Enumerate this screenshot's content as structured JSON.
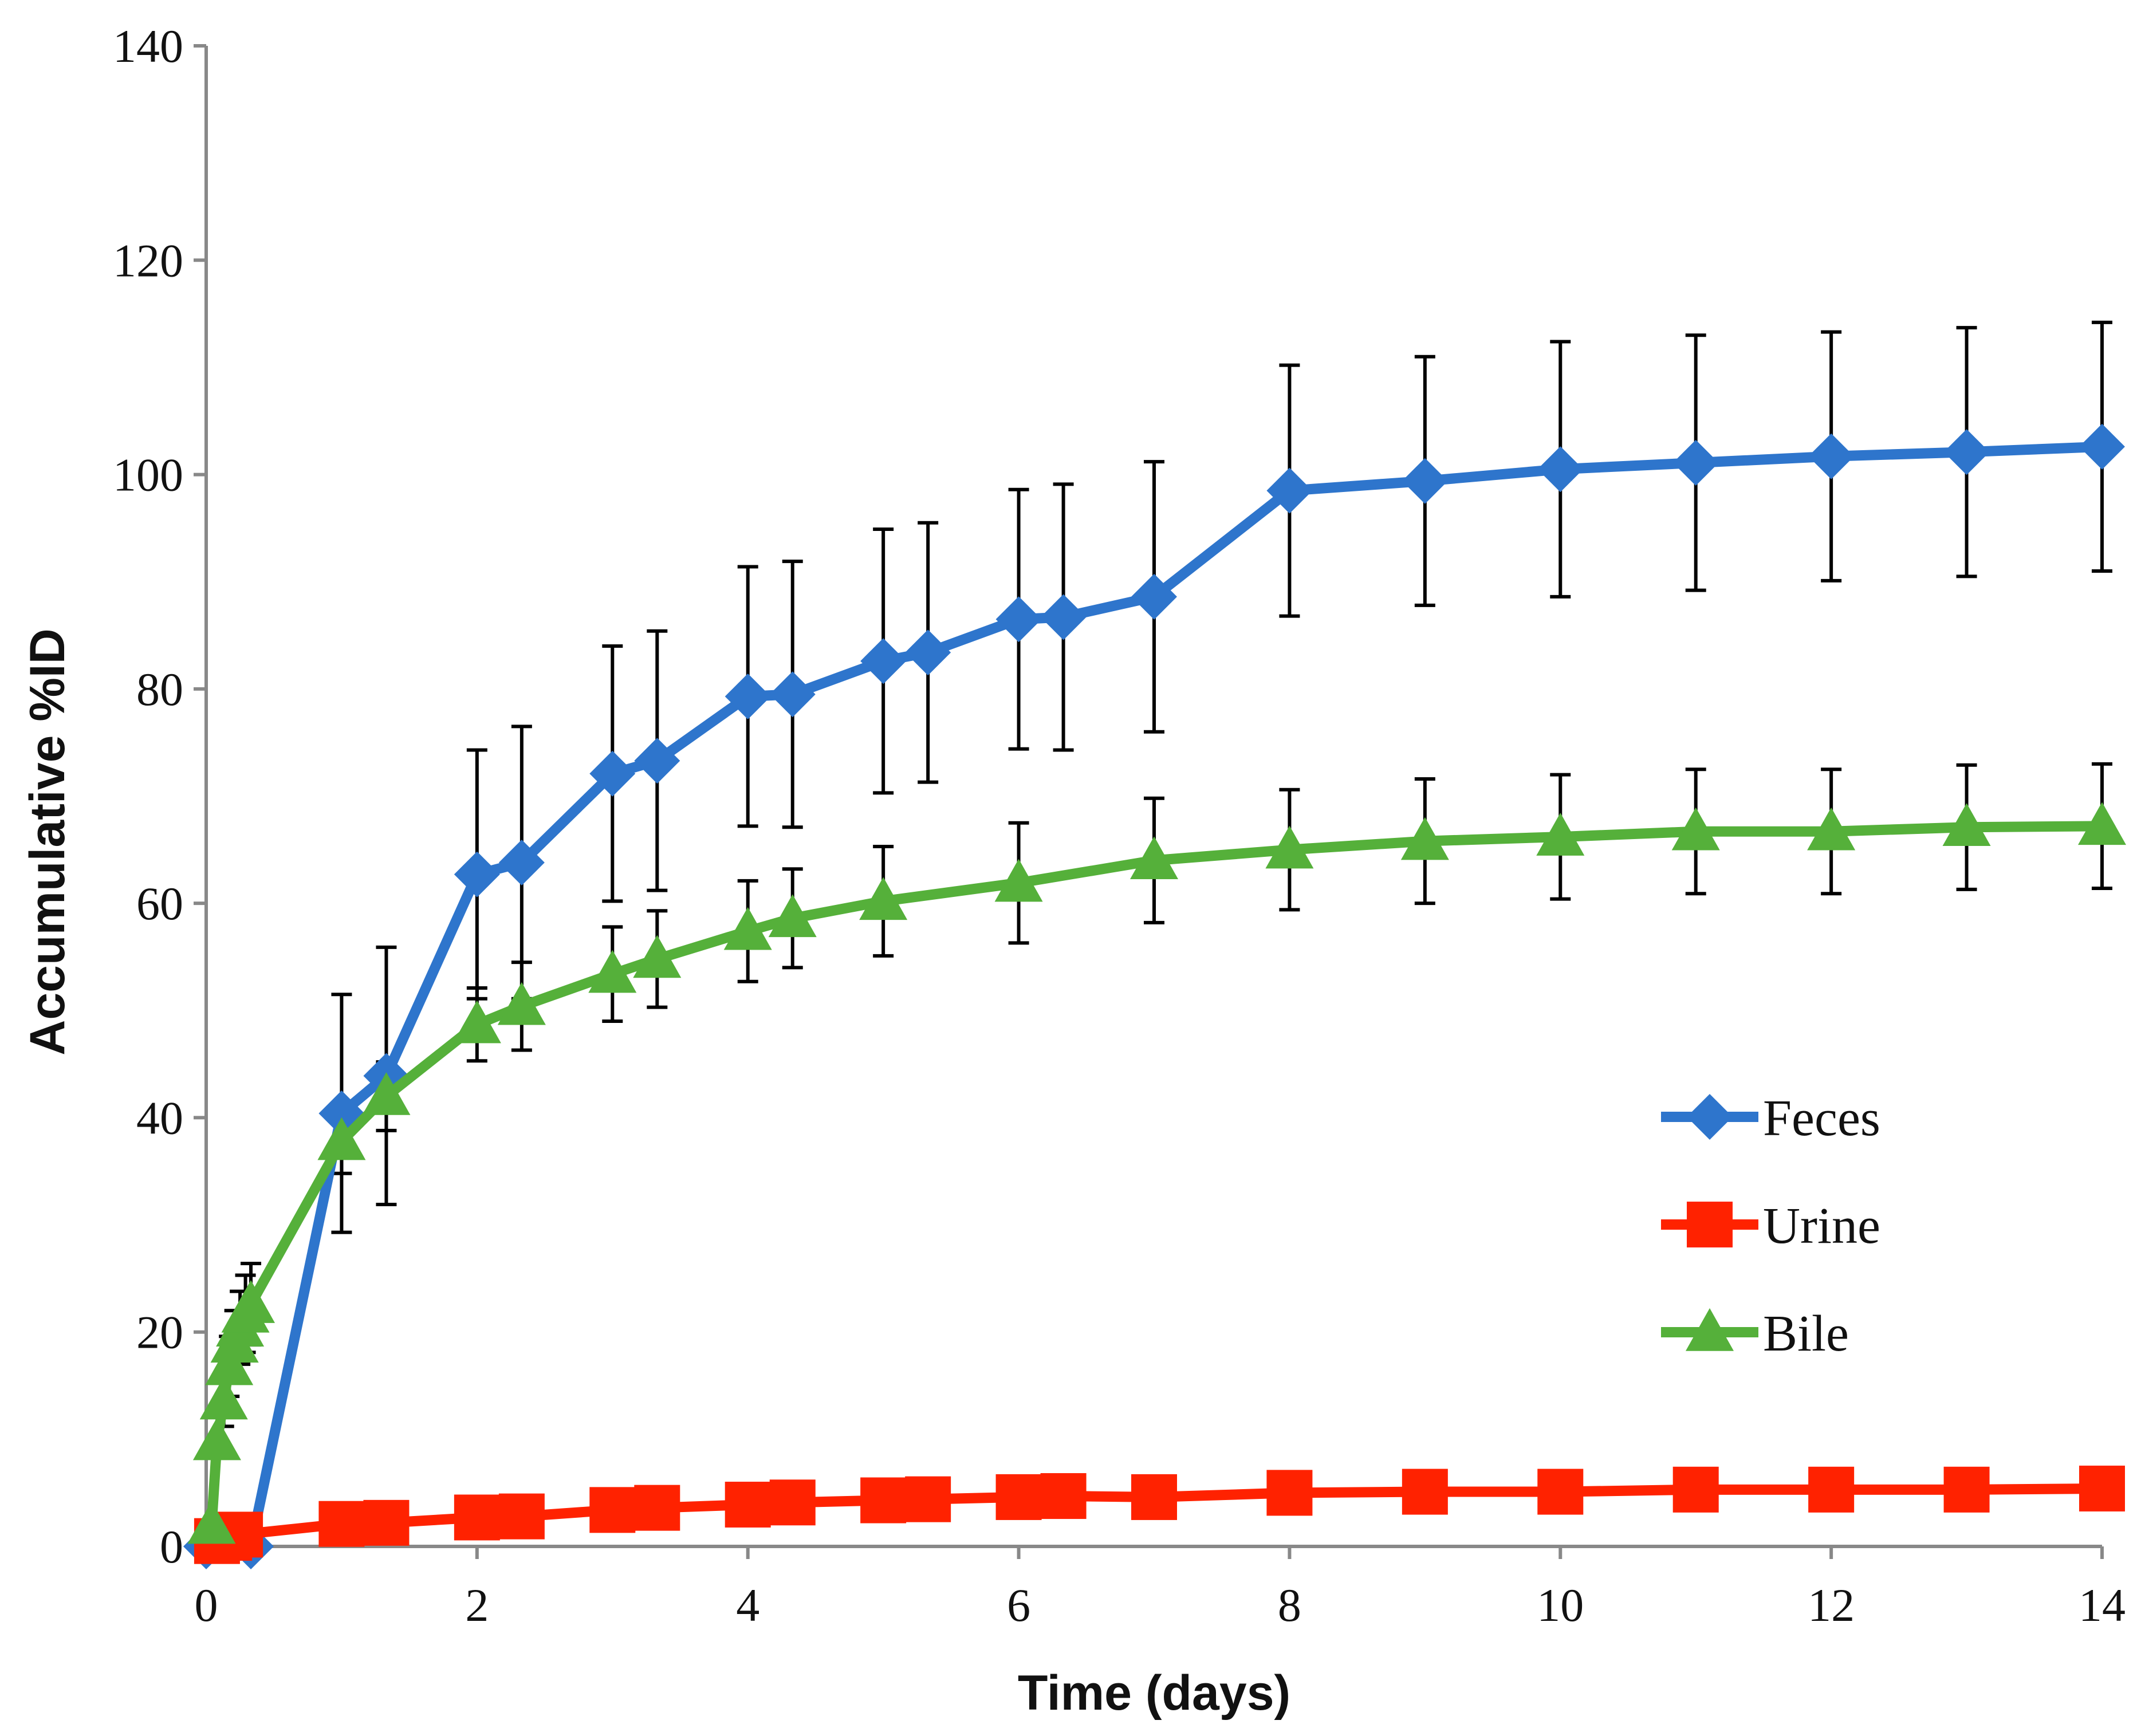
{
  "chart_data": {
    "type": "line",
    "title": "",
    "xlabel": "Time (days)",
    "ylabel": "Accumulative %ID",
    "xlim": [
      0,
      14
    ],
    "ylim": [
      0,
      140
    ],
    "xticks": [
      0,
      2,
      4,
      6,
      8,
      10,
      12,
      14
    ],
    "yticks": [
      0,
      20,
      40,
      60,
      80,
      100,
      120,
      140
    ],
    "grid": false,
    "legend_position": "right",
    "series": [
      {
        "name": "Feces",
        "color": "#2E75CC",
        "marker": "diamond",
        "x": [
          0,
          0.33,
          1,
          1.33,
          2,
          2.33,
          3,
          3.33,
          4,
          4.33,
          5,
          5.33,
          6,
          6.33,
          7,
          8,
          9,
          10,
          11,
          12,
          13,
          14
        ],
        "y": [
          0,
          0,
          40.4,
          43.9,
          62.7,
          63.8,
          72.1,
          73.3,
          79.3,
          79.5,
          82.6,
          83.4,
          86.5,
          86.7,
          88.6,
          98.5,
          99.4,
          100.5,
          101.1,
          101.7,
          102.1,
          102.6
        ],
        "err": [
          null,
          null,
          11.1,
          12,
          11.6,
          12.7,
          11.9,
          12.1,
          12.1,
          12.4,
          12.3,
          12.1,
          12.1,
          12.4,
          12.6,
          11.7,
          11.6,
          11.9,
          11.9,
          11.6,
          11.6,
          11.6
        ]
      },
      {
        "name": "Urine",
        "color": "#FF2200",
        "marker": "square",
        "x": [
          0.08,
          0.17,
          0.25,
          1,
          1.33,
          2,
          2.33,
          3,
          3.33,
          4,
          4.33,
          5,
          5.33,
          6,
          6.33,
          7,
          8,
          9,
          10,
          11,
          12,
          13,
          14
        ],
        "y": [
          0.5,
          0.8,
          1.1,
          2.1,
          2.2,
          2.7,
          2.8,
          3.4,
          3.6,
          3.9,
          4.1,
          4.3,
          4.4,
          4.6,
          4.7,
          4.6,
          5,
          5.1,
          5.1,
          5.3,
          5.3,
          5.3,
          5.4
        ],
        "err": []
      },
      {
        "name": "Bile",
        "color": "#55B03A",
        "marker": "triangle",
        "x": [
          0.04,
          0.08,
          0.13,
          0.17,
          0.21,
          0.25,
          0.29,
          0.33,
          1,
          1.33,
          2,
          2.33,
          3,
          3.33,
          4,
          4.33,
          5,
          6,
          7,
          8,
          9,
          10,
          11,
          12,
          13,
          14
        ],
        "y": [
          2,
          9.8,
          13.6,
          16.8,
          18.9,
          20.4,
          21.7,
          22.6,
          37.8,
          42,
          48.7,
          50.4,
          53.4,
          54.8,
          57.4,
          58.6,
          60.2,
          61.9,
          64,
          65,
          65.8,
          66.2,
          66.7,
          66.7,
          67.1,
          67.2
        ],
        "err": [
          null,
          null,
          2.4,
          2.8,
          3.1,
          3.4,
          3.6,
          3.8,
          3,
          3.2,
          3.4,
          4.1,
          4.4,
          4.5,
          4.7,
          4.6,
          5.1,
          5.6,
          5.8,
          5.6,
          5.8,
          5.8,
          5.8,
          5.8,
          5.8,
          5.8
        ]
      }
    ]
  }
}
